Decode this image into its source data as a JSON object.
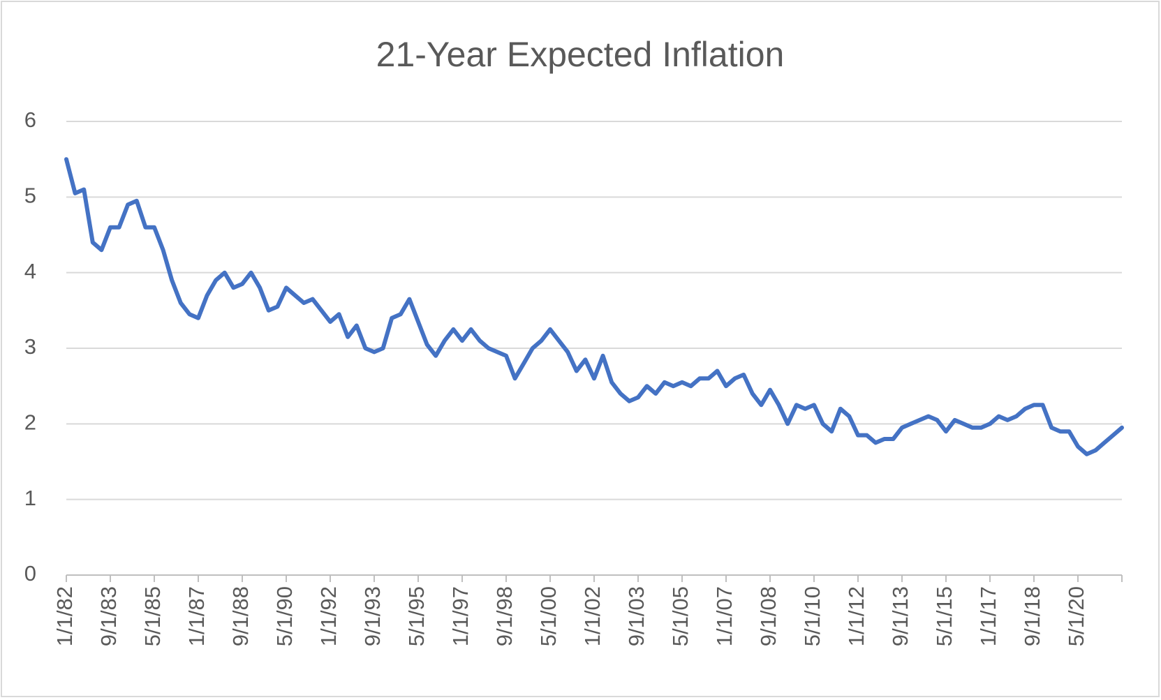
{
  "chart_data": {
    "type": "line",
    "title": "21-Year Expected Inflation",
    "categories": [
      "1/1/82",
      null,
      null,
      null,
      null,
      "9/1/83",
      null,
      null,
      null,
      null,
      "5/1/85",
      null,
      null,
      null,
      null,
      "1/1/87",
      null,
      null,
      null,
      null,
      "9/1/88",
      null,
      null,
      null,
      null,
      "5/1/90",
      null,
      null,
      null,
      null,
      "1/1/92",
      null,
      null,
      null,
      null,
      "9/1/93",
      null,
      null,
      null,
      null,
      "5/1/95",
      null,
      null,
      null,
      null,
      "1/1/97",
      null,
      null,
      null,
      null,
      "9/1/98",
      null,
      null,
      null,
      null,
      "5/1/00",
      null,
      null,
      null,
      null,
      "1/1/02",
      null,
      null,
      null,
      null,
      "9/1/03",
      null,
      null,
      null,
      null,
      "5/1/05",
      null,
      null,
      null,
      null,
      "1/1/07",
      null,
      null,
      null,
      null,
      "9/1/08",
      null,
      null,
      null,
      null,
      "5/1/10",
      null,
      null,
      null,
      null,
      "1/1/12",
      null,
      null,
      null,
      null,
      "9/1/13",
      null,
      null,
      null,
      null,
      "5/1/15",
      null,
      null,
      null,
      null,
      "1/1/17",
      null,
      null,
      null,
      null,
      "9/1/18",
      null,
      null,
      null,
      null,
      "5/1/20",
      null,
      null,
      null,
      null,
      null
    ],
    "values": [
      5.5,
      5.05,
      5.1,
      4.4,
      4.3,
      4.6,
      4.6,
      4.9,
      4.95,
      4.6,
      4.6,
      4.3,
      3.9,
      3.6,
      3.45,
      3.4,
      3.7,
      3.9,
      4.0,
      3.8,
      3.85,
      4.0,
      3.8,
      3.5,
      3.55,
      3.8,
      3.7,
      3.6,
      3.65,
      3.5,
      3.35,
      3.45,
      3.15,
      3.3,
      3.0,
      2.95,
      3.0,
      3.4,
      3.45,
      3.65,
      3.35,
      3.05,
      2.9,
      3.1,
      3.25,
      3.1,
      3.25,
      3.1,
      3.0,
      2.95,
      2.9,
      2.6,
      2.8,
      3.0,
      3.1,
      3.25,
      3.1,
      2.95,
      2.7,
      2.85,
      2.6,
      2.9,
      2.55,
      2.4,
      2.3,
      2.35,
      2.5,
      2.4,
      2.55,
      2.5,
      2.55,
      2.5,
      2.6,
      2.6,
      2.7,
      2.5,
      2.6,
      2.65,
      2.4,
      2.25,
      2.45,
      2.25,
      2.0,
      2.25,
      2.2,
      2.25,
      2.0,
      1.9,
      2.2,
      2.1,
      1.85,
      1.85,
      1.75,
      1.8,
      1.8,
      1.95,
      2.0,
      2.05,
      2.1,
      2.05,
      1.9,
      2.05,
      2.0,
      1.95,
      1.95,
      2.0,
      2.1,
      2.05,
      2.1,
      2.2,
      2.25,
      2.25,
      1.95,
      1.9,
      1.9,
      1.7,
      1.6,
      1.65,
      1.75,
      1.85,
      1.95
    ],
    "color": "#4472c4",
    "ylim": [
      0,
      6
    ],
    "yticks": [
      0,
      1,
      2,
      3,
      4,
      5,
      6
    ],
    "grid": true
  }
}
